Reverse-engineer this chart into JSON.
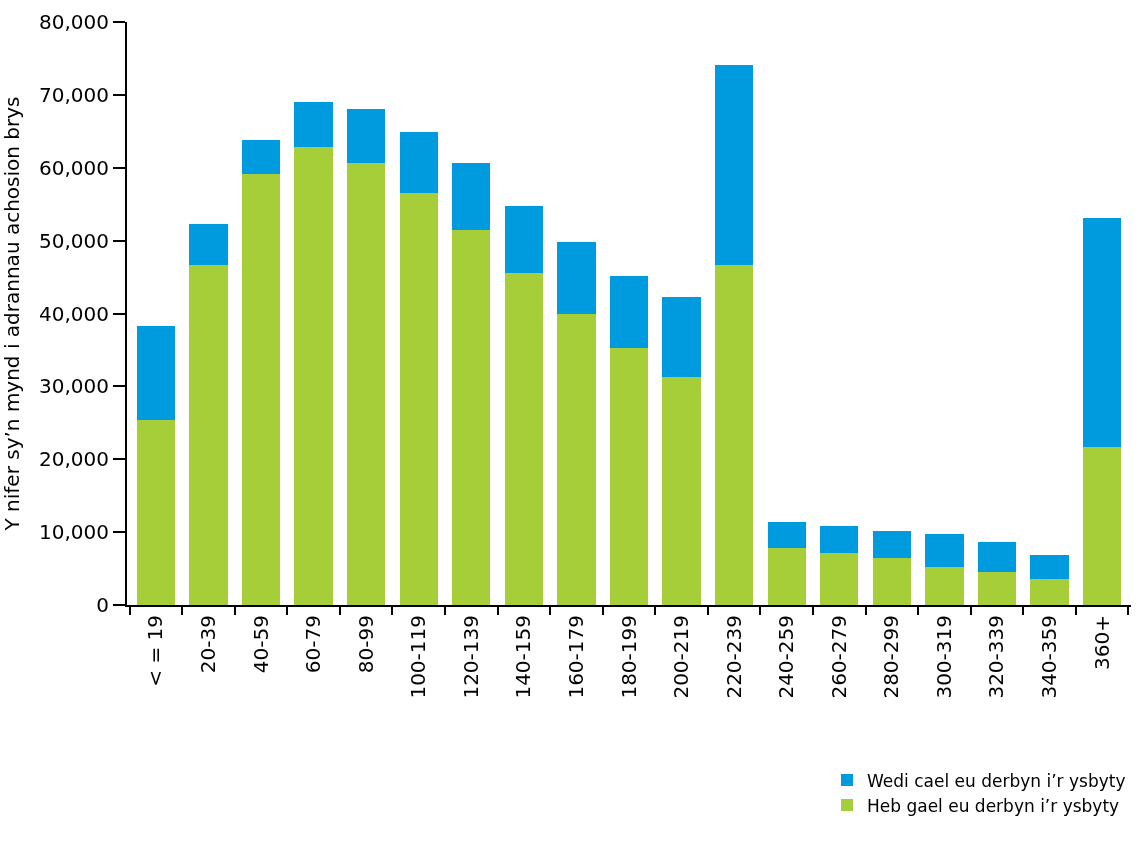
{
  "chart_data": {
    "type": "bar",
    "stacked": true,
    "ylabel": "Y nifer sy’n mynd i adrannau achosion brys",
    "categories": [
      "< = 19",
      "20-39",
      "40-59",
      "60-79",
      "80-99",
      "100-119",
      "120-139",
      "140-159",
      "160-179",
      "180-199",
      "200-219",
      "220-239",
      "240-259",
      "260-279",
      "280-299",
      "300-319",
      "320-339",
      "340-359",
      "360+"
    ],
    "series": [
      {
        "name": "Heb gael eu derbyn i’r ysbyty",
        "color": "#a6ce39",
        "values": [
          25400,
          46700,
          59100,
          62800,
          60600,
          56500,
          51500,
          45600,
          39900,
          35200,
          31300,
          46700,
          7800,
          7100,
          6400,
          5200,
          4500,
          3500,
          21700
        ]
      },
      {
        "name": "Wedi cael eu derbyn i’r ysbyty",
        "color": "#009ade",
        "values": [
          12900,
          5600,
          4700,
          6200,
          7400,
          8400,
          9100,
          9100,
          9900,
          10000,
          11000,
          27400,
          3600,
          3700,
          3700,
          4500,
          4100,
          3400,
          31400
        ]
      }
    ],
    "ylim": [
      0,
      80000
    ],
    "yticks": [
      {
        "value": 0,
        "label": "0"
      },
      {
        "value": 10000,
        "label": "10,000"
      },
      {
        "value": 20000,
        "label": "20,000"
      },
      {
        "value": 30000,
        "label": "30,000"
      },
      {
        "value": 40000,
        "label": "40,000"
      },
      {
        "value": 50000,
        "label": "50,000"
      },
      {
        "value": 60000,
        "label": "60,000"
      },
      {
        "value": 70000,
        "label": "70,000"
      },
      {
        "value": 80000,
        "label": "80,000"
      }
    ],
    "legend": "bottom right"
  }
}
